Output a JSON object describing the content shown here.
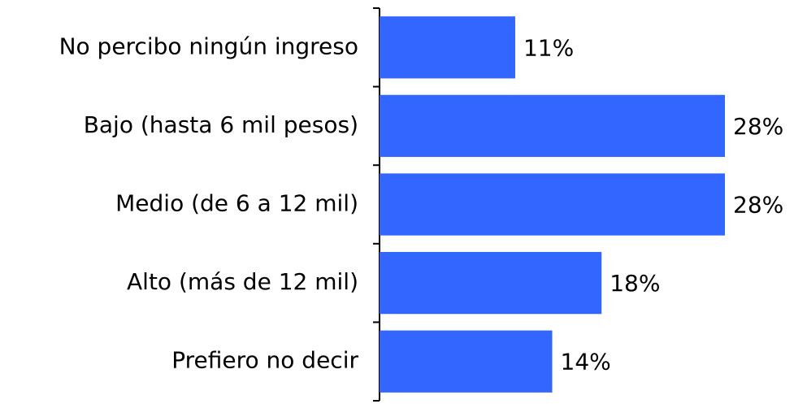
{
  "chart_data": {
    "type": "bar",
    "orientation": "horizontal",
    "categories": [
      "No percibo ningún ingreso",
      "Bajo (hasta 6 mil pesos)",
      "Medio (de 6 a 12 mil)",
      "Alto (más de 12 mil)",
      "Prefiero no decir"
    ],
    "values": [
      11,
      28,
      28,
      18,
      14
    ],
    "value_labels": [
      "11%",
      "28%",
      "28%",
      "18%",
      "14%"
    ],
    "color": "#3366ff"
  }
}
